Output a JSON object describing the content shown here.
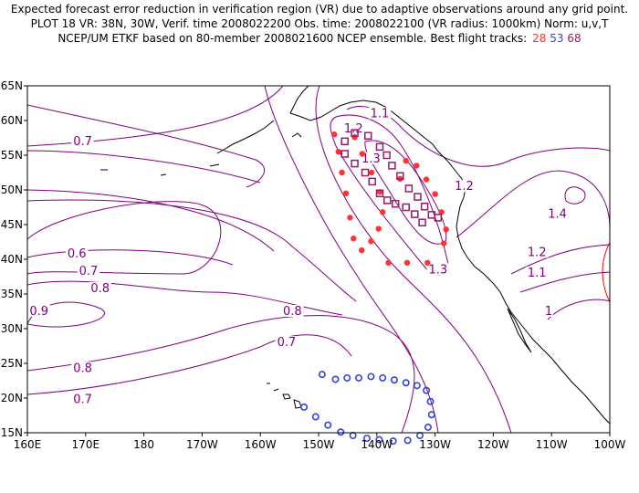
{
  "header": {
    "line1": "Expected forecast error reduction in verification region (VR) due to adaptive observations around any grid point.",
    "line2": "PLOT 18 VR: 38N, 30W, Verif. time 2008022200 Obs. time: 2008022100 (VR radius: 1000km) Norm: u,v,T",
    "line3": "NCEP/UM ETKF based on 80-member 2008021600 NCEP ensemble.  Best flight tracks:",
    "tracks": [
      "28",
      "53",
      "68"
    ]
  },
  "colors": {
    "track_28": "#ff3333",
    "track_53": "#3344dd",
    "track_68": "#991a66",
    "contour": "#800080",
    "coast": "#000000",
    "vr_circle": "#ff0000"
  },
  "axes": {
    "x_ticks": [
      "160E",
      "170E",
      "180",
      "170W",
      "160W",
      "150W",
      "140W",
      "130W",
      "120W",
      "110W",
      "100W"
    ],
    "y_ticks": [
      "15N",
      "20N",
      "25N",
      "30N",
      "35N",
      "40N",
      "45N",
      "50N",
      "55N",
      "60N",
      "65N"
    ]
  },
  "contour_labels": [
    {
      "text": "0.7",
      "lon": 169.5,
      "lat": 57.0
    },
    {
      "text": "0.6",
      "lon": 168.5,
      "lat": 40.8
    },
    {
      "text": "0.7",
      "lon": 170.5,
      "lat": 38.3
    },
    {
      "text": "0.8",
      "lon": 172.5,
      "lat": 35.8
    },
    {
      "text": "0.9",
      "lon": 162.0,
      "lat": 32.5
    },
    {
      "text": "0.8",
      "lon": 169.5,
      "lat": 24.3
    },
    {
      "text": "0.7",
      "lon": 169.5,
      "lat": 19.8
    },
    {
      "text": "0.8",
      "lon": -154.5,
      "lat": 32.5
    },
    {
      "text": "0.7",
      "lon": -155.5,
      "lat": 28.0
    },
    {
      "text": "1.1",
      "lon": -139.5,
      "lat": 61.0
    },
    {
      "text": "1.2",
      "lon": -144.0,
      "lat": 58.8
    },
    {
      "text": "1.3",
      "lon": -141.0,
      "lat": 54.5
    },
    {
      "text": "1.2",
      "lon": -125.0,
      "lat": 50.5
    },
    {
      "text": "1.4",
      "lon": -109.0,
      "lat": 46.5
    },
    {
      "text": "1.2",
      "lon": -112.5,
      "lat": 41.0
    },
    {
      "text": "1.1",
      "lon": -112.5,
      "lat": 38.0
    },
    {
      "text": "1.3",
      "lon": -129.5,
      "lat": 38.5
    },
    {
      "text": "1",
      "lon": -110.5,
      "lat": 32.5
    }
  ],
  "tracks": [
    {
      "name": "28",
      "marker": "dot",
      "color": "#ff3333",
      "points": [
        [
          -147.3,
          58.0
        ],
        [
          -146.6,
          55.5
        ],
        [
          -146.0,
          52.5
        ],
        [
          -145.3,
          49.5
        ],
        [
          -144.6,
          46.0
        ],
        [
          -144.0,
          43.0
        ],
        [
          -142.6,
          41.3
        ],
        [
          -141.0,
          42.6
        ],
        [
          -139.7,
          44.4
        ],
        [
          -139.0,
          46.8
        ],
        [
          -139.5,
          49.7
        ],
        [
          -140.9,
          52.5
        ],
        [
          -142.5,
          55.2
        ],
        [
          -143.8,
          57.6
        ],
        [
          -138.0,
          39.5
        ],
        [
          -134.8,
          39.5
        ],
        [
          -131.3,
          39.5
        ],
        [
          -128.5,
          42.3
        ],
        [
          -128.1,
          44.3
        ],
        [
          -128.9,
          46.8
        ],
        [
          -130.0,
          49.4
        ],
        [
          -131.5,
          51.5
        ],
        [
          -133.2,
          53.5
        ],
        [
          -135.0,
          54.2
        ],
        [
          -136.0,
          51.6
        ]
      ]
    },
    {
      "name": "53",
      "marker": "ring",
      "color": "#3344dd",
      "points": [
        [
          -152.5,
          18.7
        ],
        [
          -150.5,
          17.3
        ],
        [
          -148.4,
          16.1
        ],
        [
          -146.2,
          15.1
        ],
        [
          -144.1,
          14.6
        ],
        [
          -141.7,
          14.2
        ],
        [
          -139.6,
          14.0
        ],
        [
          -137.2,
          13.8
        ],
        [
          -134.7,
          13.9
        ],
        [
          -132.6,
          14.6
        ],
        [
          -131.2,
          15.8
        ],
        [
          -130.6,
          17.6
        ],
        [
          -130.8,
          19.5
        ],
        [
          -131.5,
          21.1
        ],
        [
          -133.1,
          21.8
        ],
        [
          -135.0,
          22.2
        ],
        [
          -137.0,
          22.6
        ],
        [
          -139.0,
          22.9
        ],
        [
          -141.0,
          23.1
        ],
        [
          -143.1,
          22.9
        ],
        [
          -145.1,
          22.9
        ],
        [
          -147.1,
          22.7
        ],
        [
          -149.4,
          23.4
        ]
      ]
    },
    {
      "name": "68",
      "marker": "square",
      "color": "#991a66",
      "points": [
        [
          -145.5,
          57.0
        ],
        [
          -143.8,
          58.2
        ],
        [
          -141.5,
          57.8
        ],
        [
          -139.5,
          56.2
        ],
        [
          -138.3,
          55.0
        ],
        [
          -137.4,
          53.5
        ],
        [
          -136.0,
          52.0
        ],
        [
          -134.5,
          50.2
        ],
        [
          -133.0,
          49.0
        ],
        [
          -131.8,
          47.6
        ],
        [
          -130.6,
          46.4
        ],
        [
          -129.5,
          46.0
        ],
        [
          -145.5,
          55.2
        ],
        [
          -143.8,
          53.8
        ],
        [
          -142.0,
          52.5
        ],
        [
          -140.8,
          51.2
        ],
        [
          -139.5,
          49.5
        ],
        [
          -138.2,
          48.5
        ],
        [
          -136.8,
          48.0
        ],
        [
          -135.0,
          47.5
        ],
        [
          -133.5,
          46.5
        ],
        [
          -132.2,
          45.3
        ]
      ]
    }
  ]
}
